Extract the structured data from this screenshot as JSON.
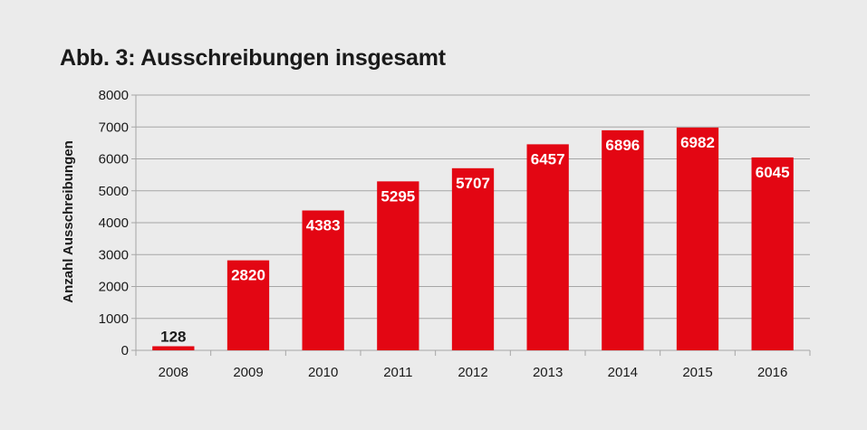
{
  "title": "Abb. 3: Ausschreibungen insgesamt",
  "colors": {
    "bar": "#e30613",
    "background": "#ebebeb",
    "grid": "#a6a6a6",
    "label_inside": "#ffffff",
    "label_outside": "#1a1a1a"
  },
  "chart_data": {
    "type": "bar",
    "title": "Abb. 3: Ausschreibungen insgesamt",
    "xlabel": "",
    "ylabel": "Anzahl  Ausschreibungen",
    "categories": [
      "2008",
      "2009",
      "2010",
      "2011",
      "2012",
      "2013",
      "2014",
      "2015",
      "2016"
    ],
    "values": [
      128,
      2820,
      4383,
      5295,
      5707,
      6457,
      6896,
      6982,
      6045
    ],
    "ylim": [
      0,
      8000
    ],
    "yticks": [
      0,
      1000,
      2000,
      3000,
      4000,
      5000,
      6000,
      7000,
      8000
    ],
    "grid": true,
    "legend": "none"
  }
}
